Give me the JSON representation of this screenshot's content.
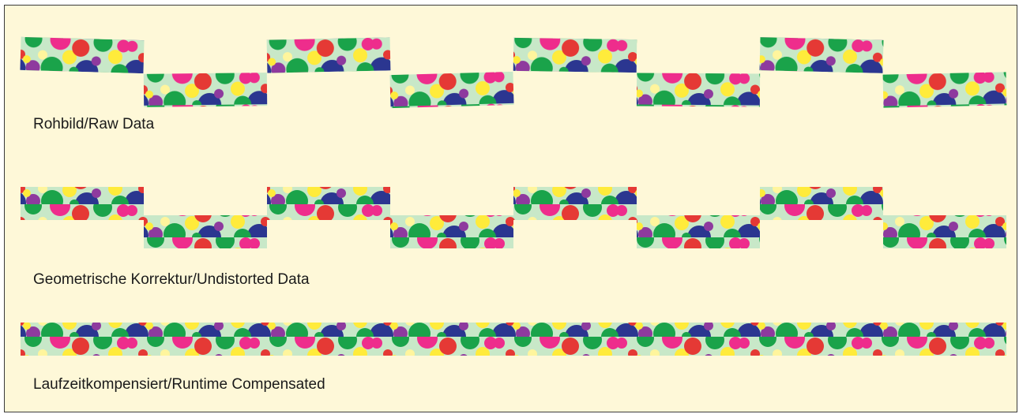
{
  "captions": {
    "raw": "Rohbild/Raw Data",
    "undistorted": "Geometrische Korrektur/Undistorted Data",
    "compensated": "Laufzeitkompensiert/Runtime Compensated"
  },
  "strip_palette": {
    "background": "#c8e8c8",
    "dots": [
      "#ee2d8c",
      "#e53935",
      "#ffeb3b",
      "#2b3690",
      "#1aa34a",
      "#8e3a9e",
      "#fff59d"
    ]
  }
}
